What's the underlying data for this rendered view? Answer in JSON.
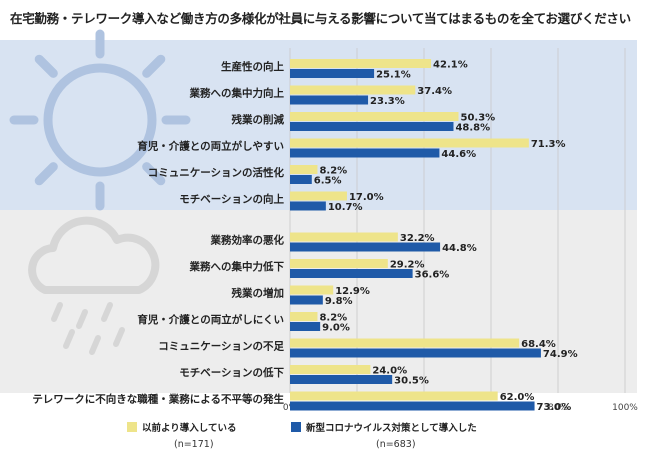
{
  "title": "在宅勤務・テレワーク導入など働き方の多様化が社員に与える影響について当てはまるものを全てお選びください",
  "colors": {
    "series1": "#EEE48A",
    "series2": "#1F5AA8",
    "positive_bg": "#D8E3F2",
    "negative_bg": "#EDEDED",
    "icon": "#AFC3E0",
    "icon_grey": "#D6D6D6"
  },
  "chart_data": {
    "type": "bar",
    "orientation": "horizontal",
    "categories": [
      "生産性の向上",
      "業務への集中力向上",
      "残業の削減",
      "育児・介護との両立がしやすい",
      "コミュニケーションの活性化",
      "モチベーションの向上",
      "業務効率の悪化",
      "業務への集中力低下",
      "残業の増加",
      "育児・介護との両立がしにくい",
      "コミュニケーションの不足",
      "モチベーションの低下",
      "テレワークに不向きな職種・業務による不平等の発生"
    ],
    "series": [
      {
        "name": "以前より導入している",
        "n": "(n=171)",
        "values": [
          42.1,
          37.4,
          50.3,
          71.3,
          8.2,
          17.0,
          32.2,
          29.2,
          12.9,
          8.2,
          68.4,
          24.0,
          62.0
        ],
        "labels": [
          "42.1%",
          "37.4%",
          "50.3%",
          "71.3%",
          "8.2%",
          "17.0%",
          "32.2%",
          "29.2%",
          "12.9%",
          "8.2%",
          "68.4%",
          "24.0%",
          "62.0%"
        ]
      },
      {
        "name": "新型コロナウイルス対策として導入した",
        "n": "(n=683)",
        "values": [
          25.1,
          23.3,
          48.8,
          44.6,
          6.5,
          10.7,
          44.8,
          36.6,
          9.8,
          9.0,
          74.9,
          30.5,
          73.0
        ],
        "labels": [
          "25.1%",
          "23.3%",
          "48.8%",
          "44.6%",
          "6.5%",
          "10.7%",
          "44.8%",
          "36.6%",
          "9.8%",
          "9.0%",
          "74.9%",
          "30.5%",
          "73.0%"
        ]
      }
    ],
    "xlim": [
      0,
      100
    ],
    "xticks": [
      "0%",
      "20%",
      "40%",
      "60%",
      "80%",
      "100%"
    ],
    "grid": true,
    "legend_position": "bottom"
  }
}
